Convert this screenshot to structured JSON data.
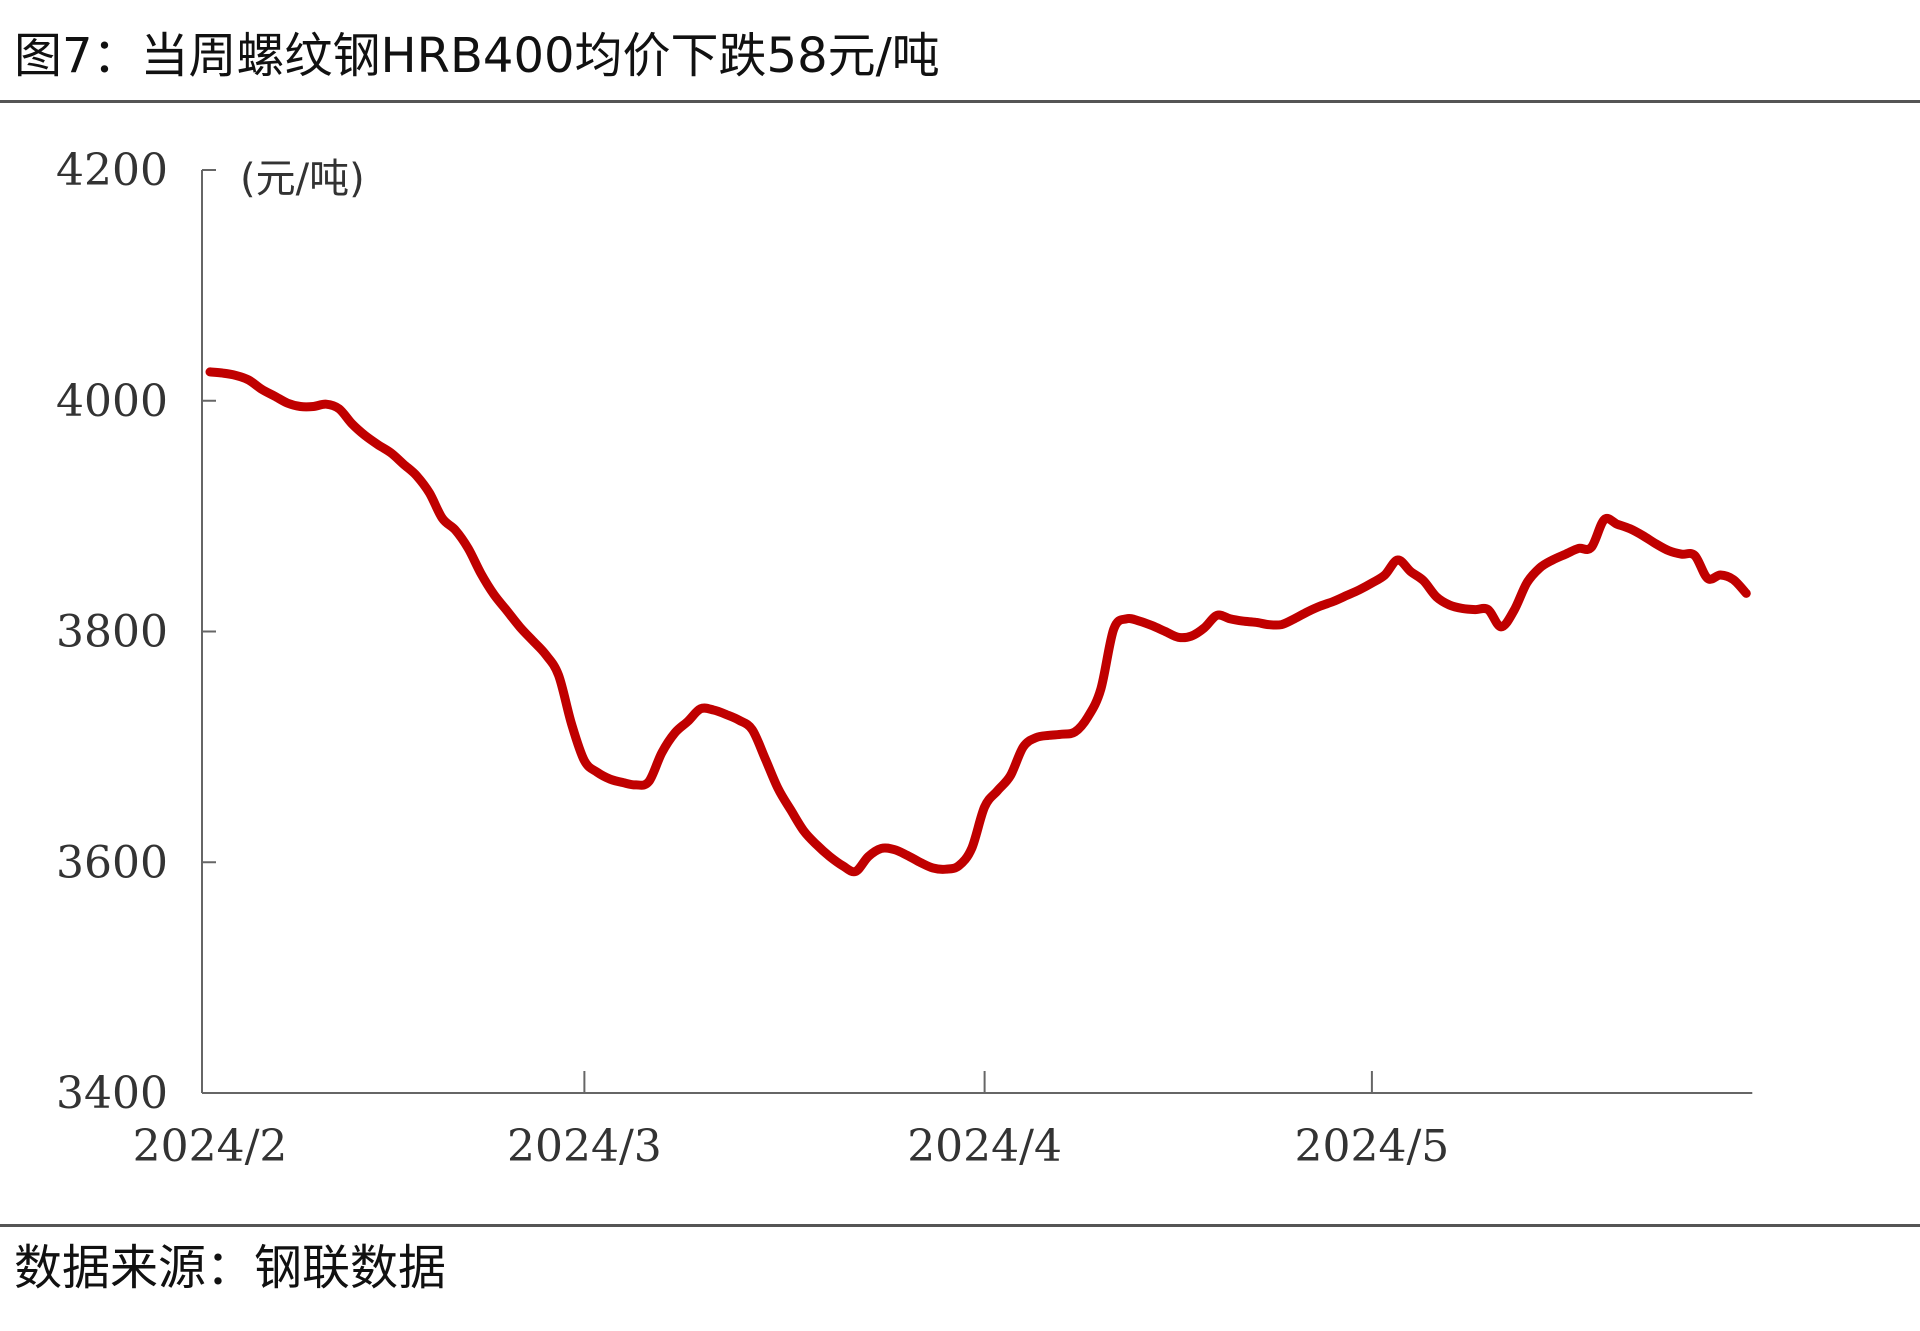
{
  "page": {
    "title": "图7：当周螺纹钢HRB400均价下跌58元/吨",
    "source": "数据来源：钢联数据"
  },
  "chart_data": {
    "type": "line",
    "title": "当周螺纹钢HRB400均价下跌58元/吨",
    "ylabel": "(元/吨)",
    "xlabel": "",
    "ylim": [
      3400,
      4200
    ],
    "yticks": [
      3400,
      3600,
      3800,
      4000,
      4200
    ],
    "xlim": [
      "2024-02-01",
      "2024-05-24"
    ],
    "xticks": [
      {
        "date": "2024-02-01",
        "label": "2024/2"
      },
      {
        "date": "2024-03-01",
        "label": "2024/3"
      },
      {
        "date": "2024-04-01",
        "label": "2024/4"
      },
      {
        "date": "2024-05-01",
        "label": "2024/5"
      }
    ],
    "grid": false,
    "line_color": "#C00000",
    "series": [
      {
        "name": "",
        "points": [
          [
            "2024-02-01",
            4025
          ],
          [
            "2024-02-02",
            4024
          ],
          [
            "2024-02-03",
            4022
          ],
          [
            "2024-02-04",
            4018
          ],
          [
            "2024-02-05",
            4010
          ],
          [
            "2024-02-06",
            4004
          ],
          [
            "2024-02-07",
            3998
          ],
          [
            "2024-02-08",
            3995
          ],
          [
            "2024-02-09",
            3995
          ],
          [
            "2024-02-10",
            3997
          ],
          [
            "2024-02-11",
            3993
          ],
          [
            "2024-02-12",
            3980
          ],
          [
            "2024-02-13",
            3970
          ],
          [
            "2024-02-14",
            3962
          ],
          [
            "2024-02-15",
            3955
          ],
          [
            "2024-02-16",
            3945
          ],
          [
            "2024-02-17",
            3935
          ],
          [
            "2024-02-18",
            3920
          ],
          [
            "2024-02-19",
            3898
          ],
          [
            "2024-02-20",
            3888
          ],
          [
            "2024-02-21",
            3872
          ],
          [
            "2024-02-22",
            3850
          ],
          [
            "2024-02-23",
            3832
          ],
          [
            "2024-02-24",
            3818
          ],
          [
            "2024-02-25",
            3804
          ],
          [
            "2024-02-26",
            3792
          ],
          [
            "2024-02-27",
            3780
          ],
          [
            "2024-02-28",
            3762
          ],
          [
            "2024-02-29",
            3720
          ],
          [
            "2024-03-01",
            3688
          ],
          [
            "2024-03-02",
            3678
          ],
          [
            "2024-03-03",
            3672
          ],
          [
            "2024-03-04",
            3669
          ],
          [
            "2024-03-05",
            3667
          ],
          [
            "2024-03-06",
            3670
          ],
          [
            "2024-03-07",
            3695
          ],
          [
            "2024-03-08",
            3712
          ],
          [
            "2024-03-09",
            3722
          ],
          [
            "2024-03-10",
            3733
          ],
          [
            "2024-03-11",
            3732
          ],
          [
            "2024-03-12",
            3728
          ],
          [
            "2024-03-13",
            3723
          ],
          [
            "2024-03-14",
            3715
          ],
          [
            "2024-03-15",
            3690
          ],
          [
            "2024-03-16",
            3664
          ],
          [
            "2024-03-17",
            3645
          ],
          [
            "2024-03-18",
            3627
          ],
          [
            "2024-03-19",
            3615
          ],
          [
            "2024-03-20",
            3605
          ],
          [
            "2024-03-21",
            3597
          ],
          [
            "2024-03-22",
            3592
          ],
          [
            "2024-03-23",
            3605
          ],
          [
            "2024-03-24",
            3612
          ],
          [
            "2024-03-25",
            3611
          ],
          [
            "2024-03-26",
            3606
          ],
          [
            "2024-03-27",
            3600
          ],
          [
            "2024-03-28",
            3595
          ],
          [
            "2024-03-29",
            3594
          ],
          [
            "2024-03-30",
            3597
          ],
          [
            "2024-03-31",
            3612
          ],
          [
            "2024-04-01",
            3648
          ],
          [
            "2024-04-02",
            3662
          ],
          [
            "2024-04-03",
            3675
          ],
          [
            "2024-04-04",
            3700
          ],
          [
            "2024-04-05",
            3708
          ],
          [
            "2024-04-06",
            3710
          ],
          [
            "2024-04-07",
            3711
          ],
          [
            "2024-04-08",
            3713
          ],
          [
            "2024-04-09",
            3726
          ],
          [
            "2024-04-10",
            3750
          ],
          [
            "2024-04-11",
            3802
          ],
          [
            "2024-04-12",
            3811
          ],
          [
            "2024-04-13",
            3809
          ],
          [
            "2024-04-14",
            3805
          ],
          [
            "2024-04-15",
            3800
          ],
          [
            "2024-04-16",
            3795
          ],
          [
            "2024-04-17",
            3796
          ],
          [
            "2024-04-18",
            3803
          ],
          [
            "2024-04-19",
            3814
          ],
          [
            "2024-04-20",
            3811
          ],
          [
            "2024-04-21",
            3809
          ],
          [
            "2024-04-22",
            3808
          ],
          [
            "2024-04-23",
            3806
          ],
          [
            "2024-04-24",
            3806
          ],
          [
            "2024-04-25",
            3811
          ],
          [
            "2024-04-26",
            3817
          ],
          [
            "2024-04-27",
            3822
          ],
          [
            "2024-04-28",
            3826
          ],
          [
            "2024-04-29",
            3831
          ],
          [
            "2024-04-30",
            3836
          ],
          [
            "2024-05-01",
            3842
          ],
          [
            "2024-05-02",
            3849
          ],
          [
            "2024-05-03",
            3862
          ],
          [
            "2024-05-04",
            3852
          ],
          [
            "2024-05-05",
            3844
          ],
          [
            "2024-05-06",
            3830
          ],
          [
            "2024-05-07",
            3823
          ],
          [
            "2024-05-08",
            3820
          ],
          [
            "2024-05-09",
            3819
          ],
          [
            "2024-05-10",
            3819
          ],
          [
            "2024-05-11",
            3804
          ],
          [
            "2024-05-12",
            3818
          ],
          [
            "2024-05-13",
            3842
          ],
          [
            "2024-05-14",
            3855
          ],
          [
            "2024-05-15",
            3862
          ],
          [
            "2024-05-16",
            3867
          ],
          [
            "2024-05-17",
            3872
          ],
          [
            "2024-05-18",
            3873
          ],
          [
            "2024-05-19",
            3897
          ],
          [
            "2024-05-20",
            3893
          ],
          [
            "2024-05-21",
            3889
          ],
          [
            "2024-05-22",
            3883
          ],
          [
            "2024-05-23",
            3876
          ],
          [
            "2024-05-24",
            3870
          ],
          [
            "2024-05-25",
            3867
          ],
          [
            "2024-05-26",
            3866
          ],
          [
            "2024-05-27",
            3846
          ],
          [
            "2024-05-28",
            3849
          ],
          [
            "2024-05-29",
            3845
          ],
          [
            "2024-05-30",
            3833
          ]
        ]
      }
    ]
  }
}
